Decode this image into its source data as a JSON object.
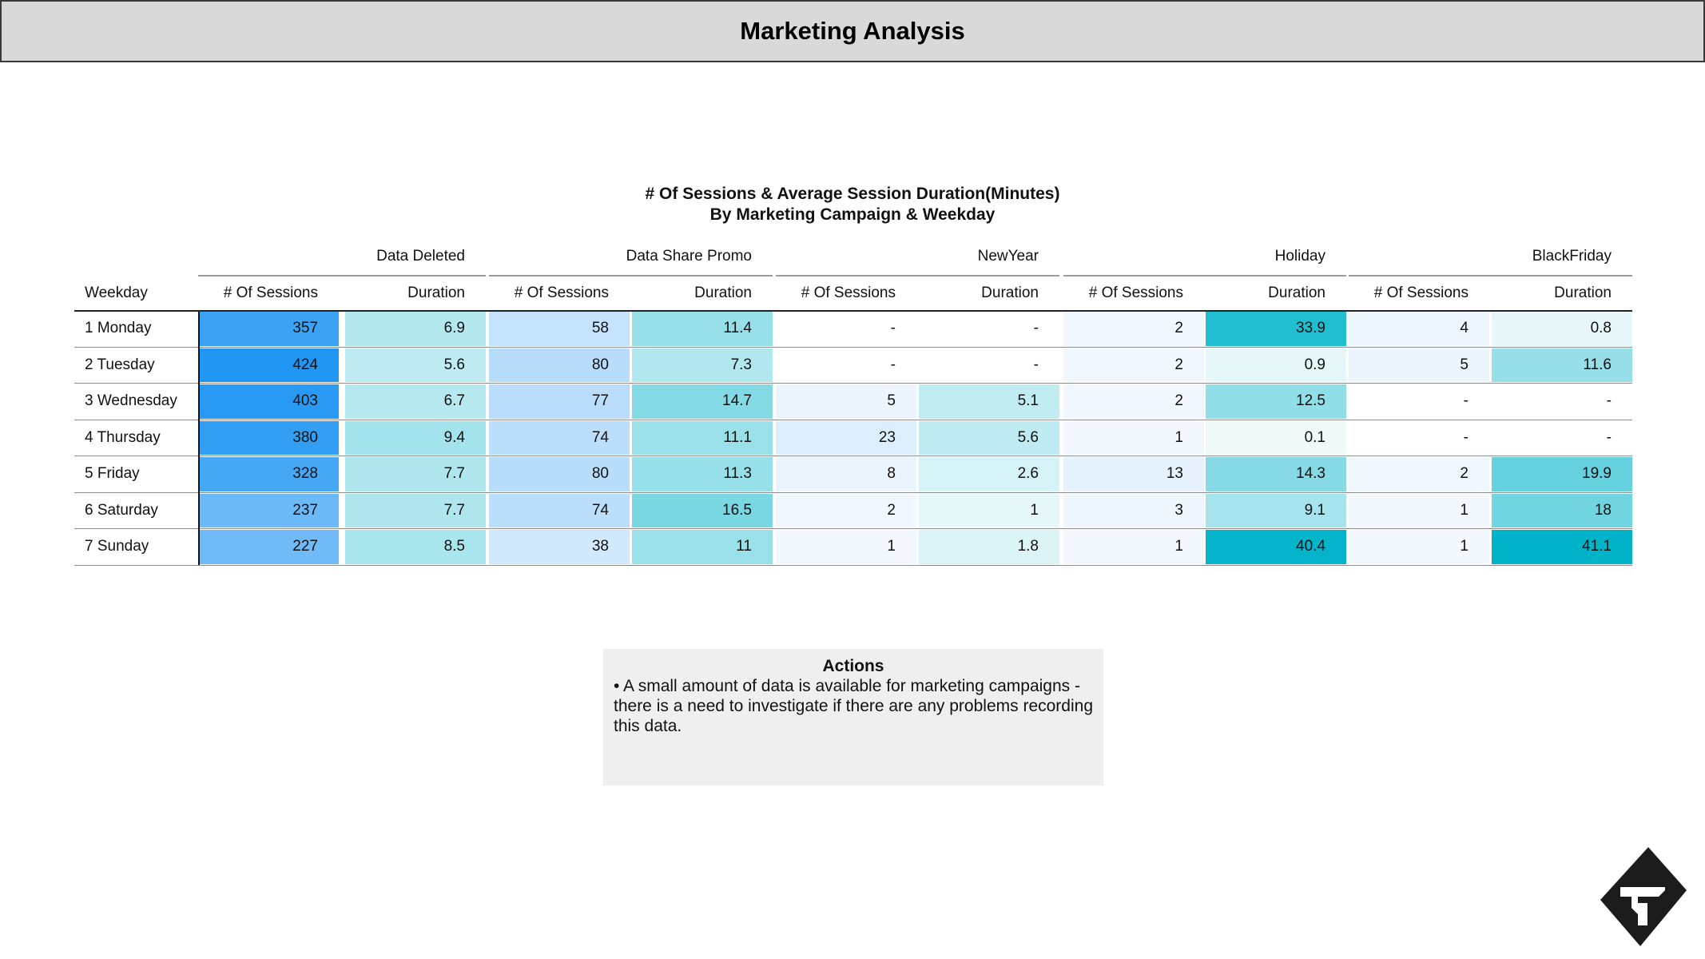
{
  "header": {
    "title": "Marketing Analysis"
  },
  "chart_title": {
    "line1": "# Of Sessions & Average Session Duration(Minutes)",
    "line2": "By Marketing Campaign & Weekday"
  },
  "chart_data": {
    "type": "table",
    "row_header": "Weekday",
    "campaigns": [
      "Data Deleted",
      "Data Share Promo",
      "NewYear",
      "Holiday",
      "BlackFriday"
    ],
    "measures": [
      "# Of Sessions",
      "Duration"
    ],
    "rows": [
      {
        "weekday": "1 Monday",
        "values": [
          357,
          6.9,
          58,
          11.4,
          null,
          null,
          2,
          33.9,
          4,
          0.8
        ]
      },
      {
        "weekday": "2 Tuesday",
        "values": [
          424,
          5.6,
          80,
          7.3,
          null,
          null,
          2,
          0.9,
          5,
          11.6
        ]
      },
      {
        "weekday": "3 Wednesday",
        "values": [
          403,
          6.7,
          77,
          14.7,
          5,
          5.1,
          2,
          12.5,
          null,
          null
        ]
      },
      {
        "weekday": "4 Thursday",
        "values": [
          380,
          9.4,
          74,
          11.1,
          23,
          5.6,
          1,
          0.1,
          null,
          null
        ]
      },
      {
        "weekday": "5 Friday",
        "values": [
          328,
          7.7,
          80,
          11.3,
          8,
          2.6,
          13,
          14.3,
          2,
          19.9
        ]
      },
      {
        "weekday": "6 Saturday",
        "values": [
          237,
          7.7,
          74,
          16.5,
          2,
          1,
          3,
          9.1,
          1,
          18
        ]
      },
      {
        "weekday": "7 Sunday",
        "values": [
          227,
          8.5,
          38,
          11,
          1,
          1.8,
          1,
          40.4,
          1,
          41.1
        ]
      }
    ],
    "missing_value_text": "-",
    "color_scale": {
      "sessions": {
        "low": "#f4f9fe",
        "high": "#2196f3",
        "max": 424
      },
      "duration": {
        "low": "#f4fbfc",
        "high": "#00b3c9",
        "max": 41.1
      }
    }
  },
  "actions": {
    "title": "Actions",
    "body": "• A small amount of data is available for marketing campaigns - there is a need to investigate if there are any problems recording this data."
  },
  "logo": {
    "icon": "company-logo-icon"
  }
}
